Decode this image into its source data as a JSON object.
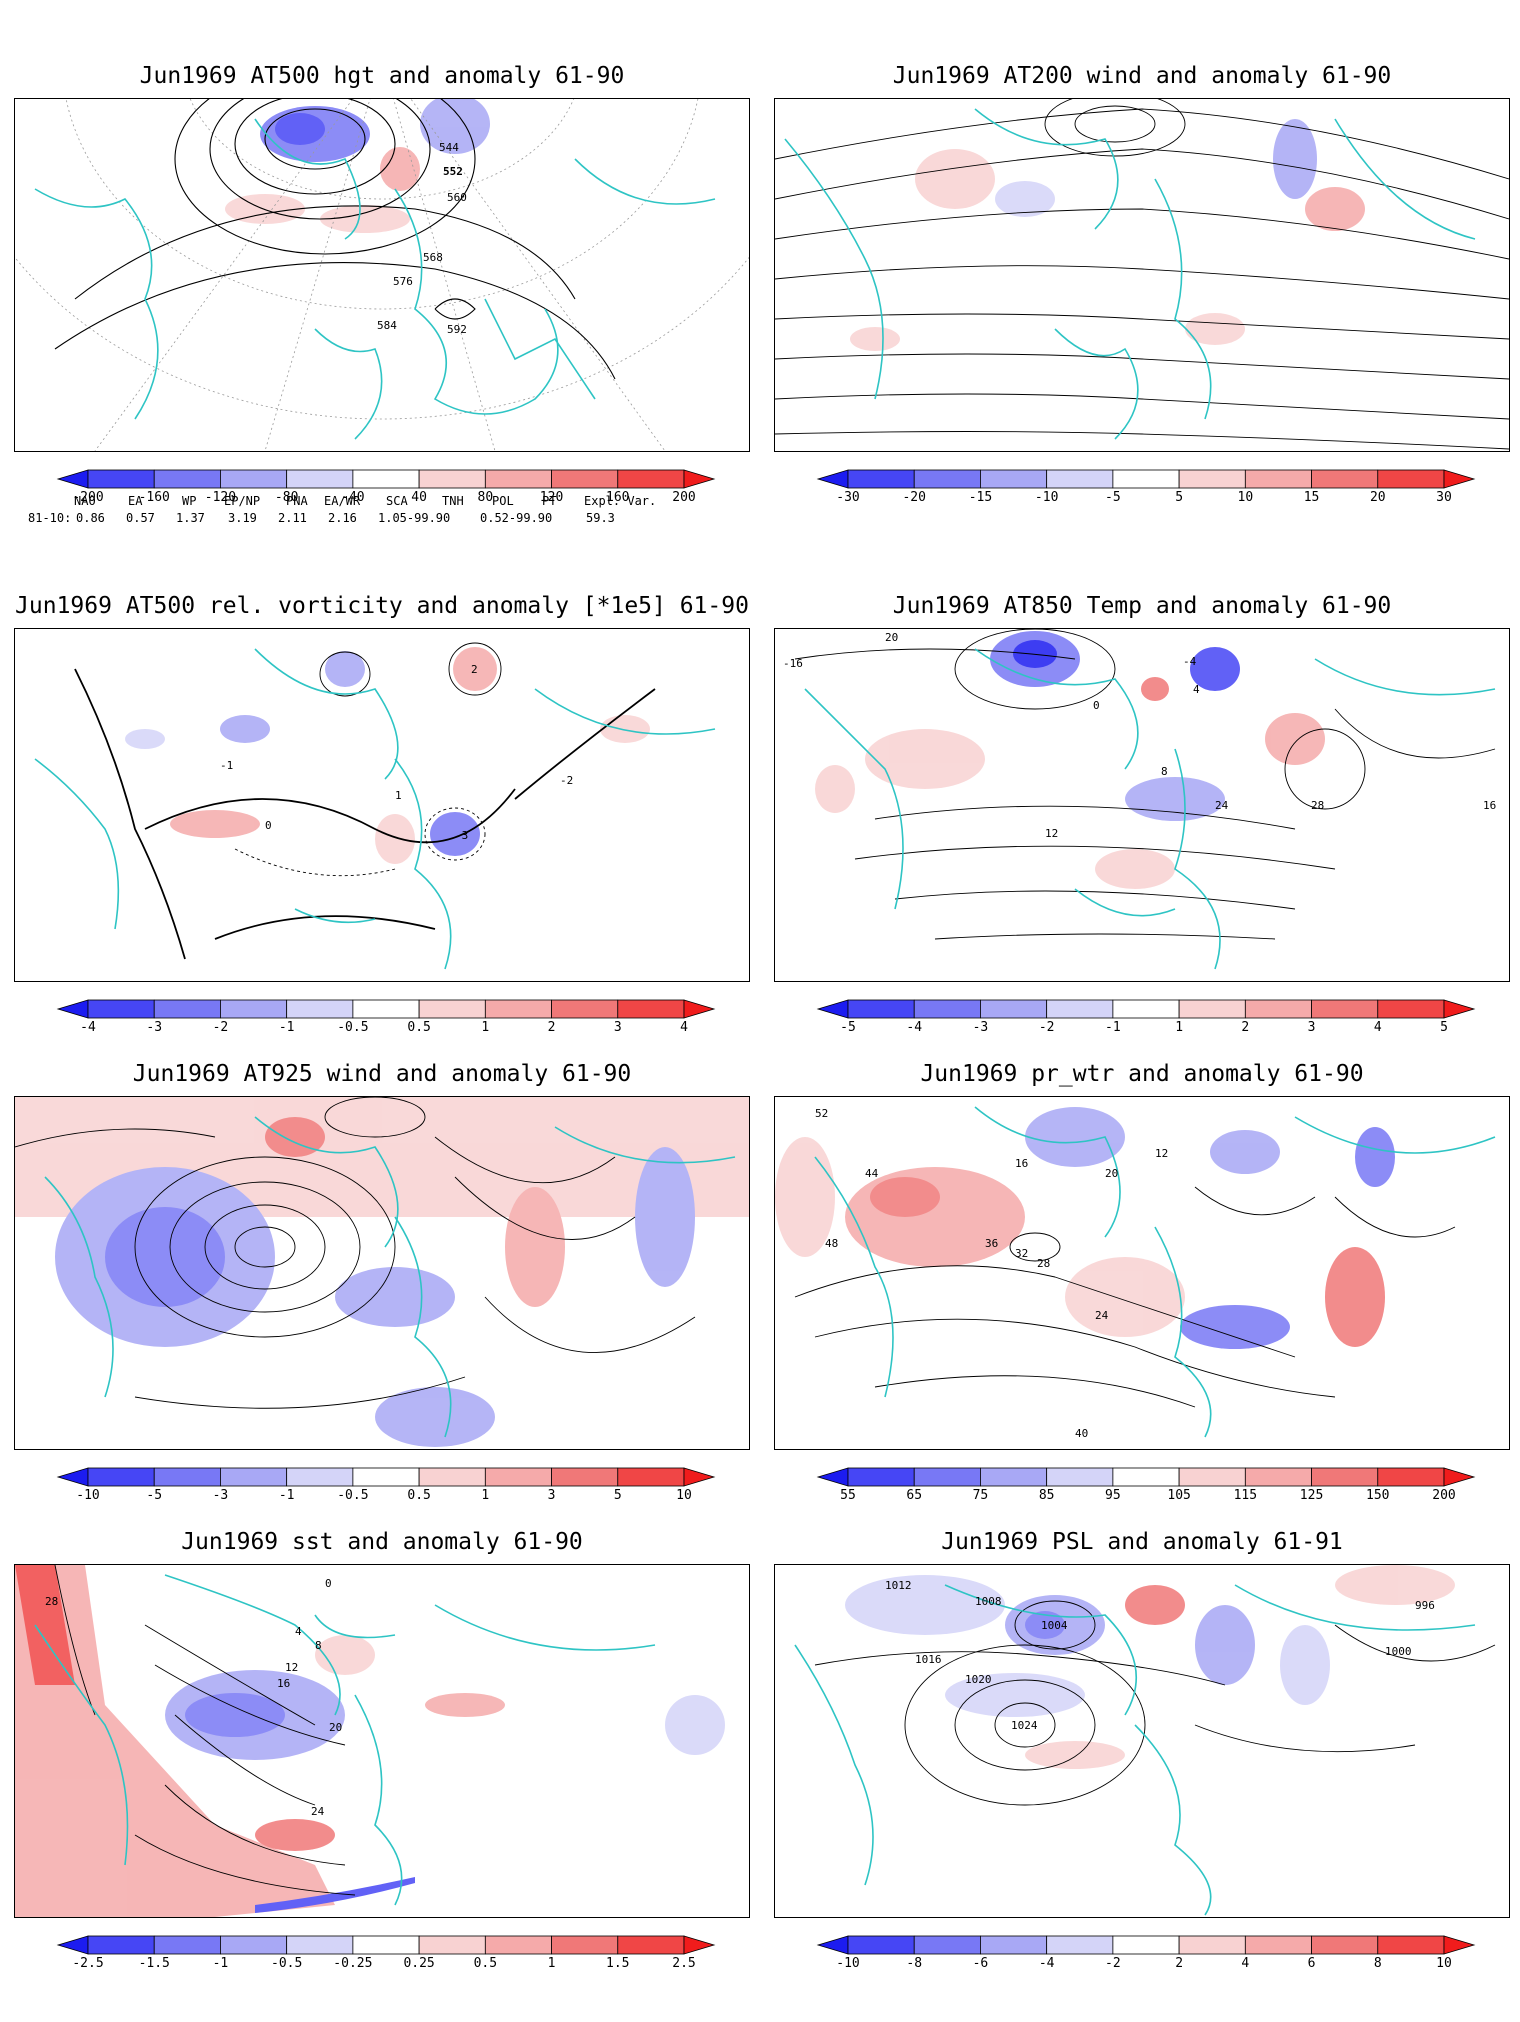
{
  "colors": {
    "coast": "#2ec4c4",
    "contour": "#000000",
    "grid": "#9a9a9a",
    "blue_scale": [
      "#1c1cf0",
      "#4646f5",
      "#7878f5",
      "#a8a8f5",
      "#d4d4f8"
    ],
    "red_scale": [
      "#f8d2d2",
      "#f5aaaa",
      "#f07878",
      "#f04646",
      "#f01c1c"
    ]
  },
  "panels": [
    {
      "title": "Jun1969 AT500 hgt and anomaly 61-90",
      "ticks": [
        "-200",
        "-160",
        "-120",
        "-80",
        "-40",
        "40",
        "80",
        "120",
        "160",
        "200"
      ],
      "contour_labels": [
        "544",
        "552",
        "560",
        "568",
        "576",
        "584",
        "592"
      ],
      "indices": {
        "header": [
          "NAO",
          "EA",
          "WP",
          "EP/NP",
          "PNA",
          "EA/WR",
          "SCA",
          "TNH",
          "POL",
          "PT",
          "Expl. Var."
        ],
        "row_label": "81-10:",
        "values": [
          "0.86",
          "0.57",
          "1.37",
          "3.19",
          "2.11",
          "2.16",
          "1.05-99.90",
          "0.52-99.90",
          "59.3"
        ]
      }
    },
    {
      "title": "Jun1969 AT200 wind and anomaly 61-90",
      "ticks": [
        "-30",
        "-20",
        "-15",
        "-10",
        "-5",
        "5",
        "10",
        "15",
        "20",
        "30"
      ]
    },
    {
      "title": "Jun1969 AT500 rel. vorticity and anomaly [*1e5] 61-90",
      "ticks": [
        "-4",
        "-3",
        "-2",
        "-1",
        "-0.5",
        "0.5",
        "1",
        "2",
        "3",
        "4"
      ],
      "contour_labels": [
        "-1",
        "-2",
        "-3",
        "1",
        "2",
        "0"
      ]
    },
    {
      "title": "Jun1969 AT850 Temp and anomaly 61-90",
      "ticks": [
        "-5",
        "-4",
        "-3",
        "-2",
        "-1",
        "1",
        "2",
        "3",
        "4",
        "5"
      ],
      "contour_labels": [
        "20",
        "-16",
        "-4",
        "0",
        "4",
        "8",
        "12",
        "16",
        "24",
        "28"
      ]
    },
    {
      "title": "Jun1969 AT925 wind and anomaly 61-90",
      "ticks": [
        "-10",
        "-5",
        "-3",
        "-1",
        "-0.5",
        "0.5",
        "1",
        "3",
        "5",
        "10"
      ]
    },
    {
      "title": "Jun1969 pr_wtr and anomaly 61-90",
      "ticks": [
        "55",
        "65",
        "75",
        "85",
        "95",
        "105",
        "115",
        "125",
        "150",
        "200"
      ],
      "contour_labels": [
        "52",
        "44",
        "48",
        "36",
        "32",
        "28",
        "24",
        "20",
        "16",
        "12",
        "40"
      ]
    },
    {
      "title": "Jun1969 sst and anomaly 61-90",
      "ticks": [
        "-2.5",
        "-1.5",
        "-1",
        "-0.5",
        "-0.25",
        "0.25",
        "0.5",
        "1",
        "1.5",
        "2.5"
      ],
      "contour_labels": [
        "28",
        "24",
        "20",
        "16",
        "12",
        "8",
        "4",
        "0"
      ]
    },
    {
      "title": "Jun1969 PSL and anomaly 61-91",
      "ticks": [
        "-10",
        "-8",
        "-6",
        "-4",
        "-2",
        "2",
        "4",
        "6",
        "8",
        "10"
      ],
      "contour_labels": [
        "1012",
        "1008",
        "1004",
        "1016",
        "1020",
        "1024",
        "1000",
        "996"
      ]
    }
  ]
}
